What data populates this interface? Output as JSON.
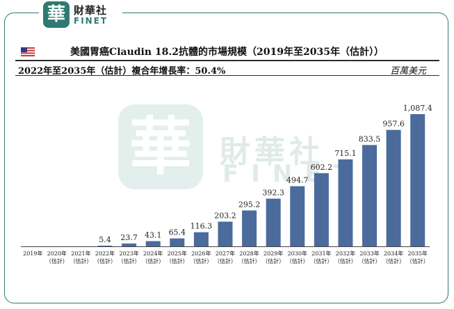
{
  "brand": {
    "seal_char": "華",
    "name_cn": "財華社",
    "name_en": "FINET"
  },
  "header": {
    "title": "美國胃癌Claudin 18.2抗體的市場規模（2019年至2035年（估計））",
    "cagr": "2022年至2035年（估計）複合年增長率：50.4%",
    "unit": "百萬美元"
  },
  "colors": {
    "bar": "#4a6b9c",
    "frame": "#2f7a73",
    "watermark": "#e0ebe9"
  },
  "chart_data": {
    "type": "bar",
    "categories": [
      [
        "2019年"
      ],
      [
        "2020年",
        "（估計）"
      ],
      [
        "2021年",
        "（估計）"
      ],
      [
        "2022年",
        "（估計）"
      ],
      [
        "2023年",
        "（估計）"
      ],
      [
        "2024年",
        "（估計）"
      ],
      [
        "2025年",
        "（估計）"
      ],
      [
        "2026年",
        "（估計）"
      ],
      [
        "2027年",
        "（估計）"
      ],
      [
        "2028年",
        "（估計）"
      ],
      [
        "2029年",
        "（估計）"
      ],
      [
        "2030年",
        "（估計）"
      ],
      [
        "2031年",
        "（估計）"
      ],
      [
        "2032年",
        "（估計）"
      ],
      [
        "2033年",
        "（估計）"
      ],
      [
        "2034年",
        "（估計）"
      ],
      [
        "2035年",
        "（估計）"
      ]
    ],
    "values": [
      null,
      null,
      null,
      5.4,
      23.7,
      43.1,
      65.4,
      116.3,
      203.2,
      295.2,
      392.3,
      494.7,
      602.2,
      715.1,
      833.5,
      957.6,
      1087.4
    ],
    "labels": [
      "",
      "",
      "",
      "5.4",
      "23.7",
      "43.1",
      "65.4",
      "116.3",
      "203.2",
      "295.2",
      "392.3",
      "494.7",
      "602.2",
      "715.1",
      "833.5",
      "957.6",
      "1,087.4"
    ],
    "ylim": [
      0,
      1087.4
    ],
    "grid": false
  }
}
